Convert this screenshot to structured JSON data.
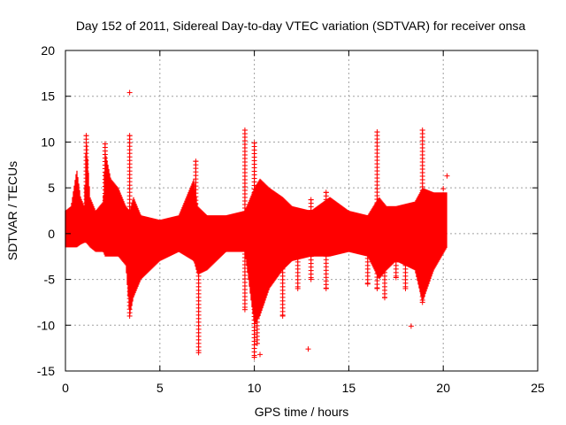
{
  "colors": {
    "background": "#ffffff",
    "axis": "#000000",
    "grid": "#a0a0a0",
    "series": "#ff0000"
  },
  "chart_data": {
    "type": "scatter",
    "title": "Day 152 of 2011, Sidereal Day-to-day VTEC variation (SDTVAR) for receiver onsa",
    "xlabel": "GPS time / hours",
    "ylabel": "SDTVAR / TECUs",
    "xlim": [
      0,
      25
    ],
    "ylim": [
      -15,
      20
    ],
    "xticks": [
      0,
      5,
      10,
      15,
      20,
      25
    ],
    "yticks": [
      -15,
      -10,
      -5,
      0,
      5,
      10,
      15,
      20
    ],
    "xtick_labels": [
      "0",
      "5",
      "10",
      "15",
      "20",
      "25"
    ],
    "ytick_labels": [
      "-15",
      "-10",
      "-5",
      "0",
      "5",
      "10",
      "15",
      "20"
    ],
    "grid": true,
    "legend": "none",
    "marker": "+",
    "series": [
      {
        "name": "SDTVAR",
        "envelope": [
          {
            "x": 0.0,
            "min": -1.5,
            "max": 2.5
          },
          {
            "x": 0.3,
            "min": -1.5,
            "max": 3.0
          },
          {
            "x": 0.6,
            "min": -1.5,
            "max": 7.0
          },
          {
            "x": 0.8,
            "min": -1.2,
            "max": 4.0
          },
          {
            "x": 1.0,
            "min": -1.0,
            "max": 3.0
          },
          {
            "x": 1.1,
            "min": -1.0,
            "max": 10.5
          },
          {
            "x": 1.3,
            "min": -1.5,
            "max": 4.0
          },
          {
            "x": 1.6,
            "min": -2.0,
            "max": 2.5
          },
          {
            "x": 2.0,
            "min": -2.0,
            "max": 3.5
          },
          {
            "x": 2.1,
            "min": -2.5,
            "max": 9.0
          },
          {
            "x": 2.4,
            "min": -2.5,
            "max": 6.0
          },
          {
            "x": 2.8,
            "min": -2.5,
            "max": 5.0
          },
          {
            "x": 3.2,
            "min": -3.5,
            "max": 3.0
          },
          {
            "x": 3.4,
            "min": -9.0,
            "max": 2.5
          },
          {
            "x": 3.6,
            "min": -7.0,
            "max": 4.0
          },
          {
            "x": 4.0,
            "min": -5.0,
            "max": 2.0
          },
          {
            "x": 5.0,
            "min": -3.0,
            "max": 1.5
          },
          {
            "x": 6.0,
            "min": -2.0,
            "max": 2.0
          },
          {
            "x": 6.8,
            "min": -3.0,
            "max": 6.0
          },
          {
            "x": 7.0,
            "min": -4.5,
            "max": 3.0
          },
          {
            "x": 7.5,
            "min": -4.0,
            "max": 2.0
          },
          {
            "x": 8.5,
            "min": -2.0,
            "max": 2.0
          },
          {
            "x": 9.5,
            "min": -2.0,
            "max": 2.5
          },
          {
            "x": 10.0,
            "min": -10.0,
            "max": 5.0
          },
          {
            "x": 10.3,
            "min": -9.0,
            "max": 6.0
          },
          {
            "x": 10.8,
            "min": -6.0,
            "max": 5.0
          },
          {
            "x": 11.5,
            "min": -4.0,
            "max": 4.0
          },
          {
            "x": 12.0,
            "min": -3.0,
            "max": 3.0
          },
          {
            "x": 13.0,
            "min": -2.5,
            "max": 2.5
          },
          {
            "x": 14.0,
            "min": -2.5,
            "max": 4.0
          },
          {
            "x": 15.0,
            "min": -2.0,
            "max": 2.5
          },
          {
            "x": 16.0,
            "min": -2.5,
            "max": 2.0
          },
          {
            "x": 16.6,
            "min": -5.0,
            "max": 4.0
          },
          {
            "x": 17.0,
            "min": -4.0,
            "max": 3.0
          },
          {
            "x": 17.5,
            "min": -3.0,
            "max": 3.0
          },
          {
            "x": 18.5,
            "min": -4.0,
            "max": 3.5
          },
          {
            "x": 18.9,
            "min": -7.5,
            "max": 5.0
          },
          {
            "x": 19.5,
            "min": -4.0,
            "max": 4.5
          },
          {
            "x": 20.2,
            "min": -1.5,
            "max": 4.5
          }
        ],
        "spikes": [
          {
            "x": 1.1,
            "low": 0,
            "high": 10.7
          },
          {
            "x": 2.1,
            "low": 0,
            "high": 9.8
          },
          {
            "x": 3.4,
            "low": -9.0,
            "high": 10.7
          },
          {
            "x": 6.9,
            "low": -3.0,
            "high": 7.9
          },
          {
            "x": 7.05,
            "low": -13.0,
            "high": 0
          },
          {
            "x": 9.5,
            "low": -8.3,
            "high": 11.3
          },
          {
            "x": 10.0,
            "low": -13.5,
            "high": 9.9
          },
          {
            "x": 10.15,
            "low": -12.0,
            "high": 0
          },
          {
            "x": 11.5,
            "low": -9.0,
            "high": 0
          },
          {
            "x": 12.3,
            "low": -6.0,
            "high": 0
          },
          {
            "x": 13.0,
            "low": -5.0,
            "high": 3.7
          },
          {
            "x": 13.8,
            "low": -6.0,
            "high": 4.5
          },
          {
            "x": 16.0,
            "low": -5.5,
            "high": 0
          },
          {
            "x": 16.5,
            "low": -6.0,
            "high": 11.1
          },
          {
            "x": 16.9,
            "low": -7.0,
            "high": 0
          },
          {
            "x": 17.5,
            "low": -4.8,
            "high": 0
          },
          {
            "x": 18.0,
            "low": -6.0,
            "high": 0
          },
          {
            "x": 18.9,
            "low": -7.5,
            "high": 11.3
          }
        ],
        "outliers": [
          {
            "x": 3.4,
            "y": 15.4
          },
          {
            "x": 10.3,
            "y": -13.2
          },
          {
            "x": 12.85,
            "y": -12.6
          },
          {
            "x": 18.3,
            "y": -10.1
          },
          {
            "x": 20.2,
            "y": 6.3
          },
          {
            "x": 20.0,
            "y": 4.9
          }
        ]
      }
    ]
  }
}
